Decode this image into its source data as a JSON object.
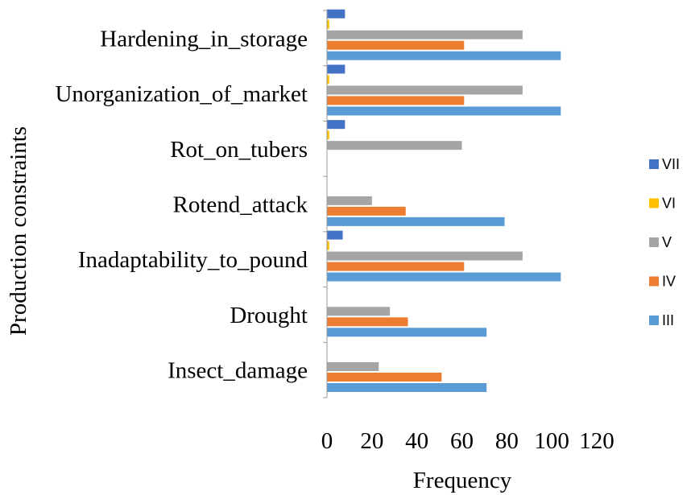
{
  "chart_data": {
    "type": "bar",
    "orientation": "horizontal",
    "categories": [
      "Hardening_in_storage",
      "Unorganization_of_market",
      "Rot_on_tubers",
      "Rotend_attack",
      "Inadaptability_to_pound",
      "Drought",
      "Insect_damage"
    ],
    "series": [
      {
        "name": "III",
        "color": "#5b9bd5",
        "values": [
          104,
          104,
          0,
          79,
          104,
          71,
          71
        ]
      },
      {
        "name": "IV",
        "color": "#ed7d31",
        "values": [
          61,
          61,
          0,
          35,
          61,
          36,
          51
        ]
      },
      {
        "name": "V",
        "color": "#a5a5a5",
        "values": [
          87,
          87,
          60,
          20,
          87,
          28,
          23
        ]
      },
      {
        "name": "VI",
        "color": "#ffc000",
        "values": [
          1,
          1,
          1,
          0,
          1,
          0,
          0
        ]
      },
      {
        "name": "VII",
        "color": "#4472c4",
        "values": [
          8,
          8,
          8,
          0,
          7,
          0,
          0
        ]
      }
    ],
    "xlabel": "Frequency",
    "ylabel": "Production constraints",
    "xlim": [
      0,
      120
    ],
    "xticks": [
      "0",
      "20",
      "40",
      "60",
      "80",
      "100",
      "120"
    ],
    "legend_position": "right",
    "grid": false
  }
}
